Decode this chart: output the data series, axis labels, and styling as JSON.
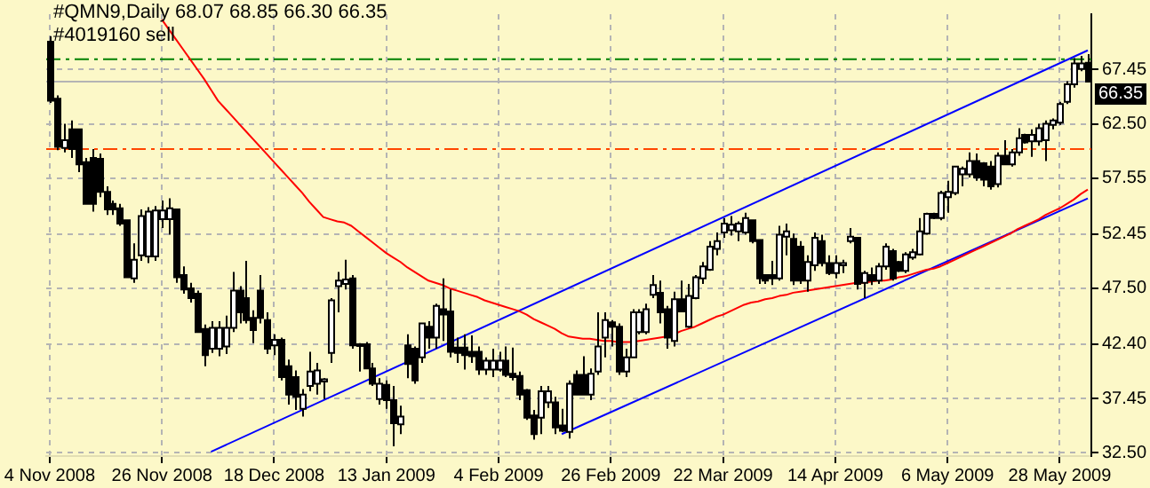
{
  "chart_data": {
    "type": "candlestick",
    "title": "#QMN9,Daily 68.07 68.85 66.30 66.35",
    "annotations": [
      "#4019160 sell"
    ],
    "categories": [
      "4 Nov 2008",
      null,
      null,
      null,
      null,
      null,
      null,
      null,
      null,
      null,
      null,
      null,
      null,
      null,
      null,
      null,
      "26 Nov 2008",
      null,
      null,
      null,
      null,
      null,
      null,
      null,
      null,
      null,
      null,
      null,
      null,
      null,
      null,
      null,
      "18 Dec 2008",
      null,
      null,
      null,
      null,
      null,
      null,
      null,
      null,
      null,
      null,
      null,
      null,
      null,
      null,
      null,
      "13 Jan 2009",
      null,
      null,
      null,
      null,
      null,
      null,
      null,
      null,
      null,
      null,
      null,
      null,
      null,
      null,
      null,
      "4 Feb 2009",
      null,
      null,
      null,
      null,
      null,
      null,
      null,
      null,
      null,
      null,
      null,
      null,
      null,
      null,
      null,
      "26 Feb 2009",
      null,
      null,
      null,
      null,
      null,
      null,
      null,
      null,
      null,
      null,
      null,
      null,
      null,
      null,
      null,
      "22 Mar 2009",
      null,
      null,
      null,
      null,
      null,
      null,
      null,
      null,
      null,
      null,
      null,
      null,
      null,
      null,
      null,
      "14 Apr 2009",
      null,
      null,
      null,
      null,
      null,
      null,
      null,
      null,
      null,
      null,
      null,
      null,
      null,
      null,
      null,
      "6 May 2009",
      null,
      null,
      null,
      null,
      null,
      null,
      null,
      null,
      null,
      null,
      null,
      null,
      null,
      null,
      null,
      "28 May 2009",
      null,
      null,
      null,
      null
    ],
    "ohlc": [
      [
        70.0,
        70.5,
        64.4,
        64.6
      ],
      [
        64.8,
        65.1,
        60.1,
        60.4
      ],
      [
        60.3,
        62.5,
        59.9,
        61.0
      ],
      [
        62.0,
        62.8,
        59.4,
        60.2
      ],
      [
        62.0,
        62.0,
        58.1,
        58.8
      ],
      [
        59.0,
        59.4,
        55.2,
        55.2
      ],
      [
        59.4,
        60.2,
        54.5,
        55.2
      ],
      [
        59.3,
        59.8,
        55.8,
        56.3
      ],
      [
        56.3,
        56.8,
        54.2,
        54.7
      ],
      [
        55.2,
        55.5,
        54.2,
        54.7
      ],
      [
        54.8,
        55.2,
        53.2,
        53.4
      ],
      [
        53.7,
        53.7,
        48.5,
        48.5
      ],
      [
        48.4,
        51.6,
        48.0,
        50.1
      ],
      [
        50.5,
        54.7,
        50.0,
        54.1
      ],
      [
        50.4,
        54.9,
        49.8,
        54.5
      ],
      [
        50.4,
        55.0,
        50.0,
        54.6
      ],
      [
        53.8,
        55.5,
        53.0,
        54.6
      ],
      [
        53.8,
        55.7,
        52.4,
        54.8
      ],
      [
        54.7,
        54.7,
        48.0,
        48.5
      ],
      [
        48.7,
        49.5,
        47.0,
        47.4
      ],
      [
        47.5,
        48.0,
        46.2,
        46.6
      ],
      [
        47.0,
        47.3,
        43.5,
        43.5
      ],
      [
        43.8,
        44.2,
        40.4,
        41.4
      ],
      [
        42.0,
        44.5,
        41.6,
        43.9
      ],
      [
        42.0,
        44.5,
        41.3,
        43.9
      ],
      [
        42.2,
        45.0,
        41.5,
        43.9
      ],
      [
        43.9,
        49.0,
        43.5,
        47.3
      ],
      [
        47.3,
        47.7,
        44.3,
        45.3
      ],
      [
        46.6,
        50.0,
        44.3,
        44.6
      ],
      [
        44.8,
        45.5,
        42.5,
        43.7
      ],
      [
        47.3,
        48.7,
        44.3,
        44.8
      ],
      [
        44.6,
        45.3,
        41.5,
        42.0
      ],
      [
        42.3,
        43.3,
        41.4,
        42.8
      ],
      [
        42.8,
        43.0,
        39.1,
        39.4
      ],
      [
        40.4,
        41.0,
        36.9,
        37.8
      ],
      [
        39.4,
        40.0,
        36.4,
        37.6
      ],
      [
        36.5,
        38.3,
        35.8,
        37.8
      ],
      [
        38.6,
        41.7,
        38.1,
        39.9
      ],
      [
        38.8,
        40.7,
        37.8,
        40.0
      ],
      [
        39.0,
        39.3,
        37.4,
        39.2
      ],
      [
        41.6,
        46.6,
        40.7,
        46.4
      ],
      [
        47.7,
        49.0,
        45.3,
        48.2
      ],
      [
        47.9,
        50.1,
        47.4,
        48.3
      ],
      [
        48.4,
        48.7,
        42.0,
        42.3
      ],
      [
        42.4,
        42.5,
        39.9,
        42.3
      ],
      [
        42.4,
        42.6,
        40.2,
        40.2
      ],
      [
        40.2,
        40.7,
        38.6,
        38.8
      ],
      [
        37.4,
        39.3,
        36.9,
        38.8
      ],
      [
        38.7,
        39.1,
        36.5,
        37.3
      ],
      [
        37.3,
        38.6,
        33.1,
        35.2
      ],
      [
        35.1,
        36.8,
        34.2,
        35.8
      ],
      [
        42.3,
        43.3,
        39.3,
        40.6
      ],
      [
        42.0,
        42.2,
        38.8,
        39.1
      ],
      [
        41.2,
        44.3,
        40.7,
        44.3
      ],
      [
        44.0,
        44.5,
        42.0,
        43.0
      ],
      [
        43.0,
        46.1,
        42.0,
        45.9
      ],
      [
        45.6,
        48.4,
        42.7,
        45.1
      ],
      [
        45.4,
        47.4,
        41.2,
        41.7
      ],
      [
        42.1,
        43.0,
        40.7,
        41.6
      ],
      [
        42.1,
        43.3,
        40.1,
        41.4
      ],
      [
        41.7,
        43.2,
        40.7,
        41.3
      ],
      [
        41.7,
        42.2,
        39.6,
        40.1
      ],
      [
        40.1,
        41.2,
        39.6,
        40.9
      ],
      [
        40.1,
        42.0,
        39.4,
        40.9
      ],
      [
        40.1,
        41.7,
        39.9,
        40.9
      ],
      [
        40.9,
        42.2,
        39.4,
        39.6
      ],
      [
        39.7,
        42.1,
        39.1,
        39.4
      ],
      [
        39.5,
        39.9,
        37.3,
        37.8
      ],
      [
        38.2,
        38.3,
        35.5,
        35.7
      ],
      [
        35.9,
        36.4,
        33.7,
        34.2
      ],
      [
        35.7,
        38.6,
        34.2,
        38.1
      ],
      [
        37.1,
        38.6,
        36.6,
        38.1
      ],
      [
        37.1,
        37.6,
        34.2,
        34.8
      ],
      [
        35.0,
        36.5,
        34.4,
        34.5
      ],
      [
        34.4,
        39.1,
        33.8,
        38.8
      ],
      [
        39.6,
        40.0,
        37.8,
        37.8
      ],
      [
        39.6,
        41.3,
        37.8,
        37.8
      ],
      [
        37.8,
        40.2,
        37.3,
        39.7
      ],
      [
        39.9,
        45.3,
        39.6,
        42.2
      ],
      [
        43.0,
        45.3,
        41.2,
        44.6
      ],
      [
        44.4,
        44.6,
        42.2,
        44.0
      ],
      [
        44.0,
        44.3,
        39.6,
        39.9
      ],
      [
        39.9,
        42.0,
        39.4,
        41.2
      ],
      [
        41.2,
        45.6,
        41.2,
        45.3
      ],
      [
        43.5,
        45.6,
        43.3,
        45.3
      ],
      [
        43.5,
        46.1,
        43.3,
        45.6
      ],
      [
        46.9,
        48.7,
        46.6,
        47.8
      ],
      [
        47.1,
        48.2,
        44.3,
        45.3
      ],
      [
        45.6,
        45.9,
        42.0,
        43.0
      ],
      [
        42.7,
        47.2,
        42.2,
        46.5
      ],
      [
        46.5,
        48.2,
        45.3,
        45.4
      ],
      [
        44.0,
        47.9,
        43.9,
        46.8
      ],
      [
        46.6,
        48.7,
        46.5,
        48.5
      ],
      [
        48.4,
        49.9,
        47.9,
        49.5
      ],
      [
        49.2,
        51.8,
        49.1,
        51.3
      ],
      [
        51.1,
        52.6,
        50.5,
        51.8
      ],
      [
        52.6,
        53.9,
        52.1,
        53.4
      ],
      [
        52.8,
        54.1,
        52.3,
        53.3
      ],
      [
        52.7,
        53.6,
        51.8,
        53.4
      ],
      [
        52.6,
        54.4,
        52.4,
        53.9
      ],
      [
        53.7,
        53.7,
        51.6,
        51.8
      ],
      [
        51.9,
        51.9,
        47.9,
        48.4
      ],
      [
        48.7,
        48.7,
        47.9,
        48.2
      ],
      [
        48.7,
        50.0,
        47.8,
        48.4
      ],
      [
        48.4,
        53.2,
        48.2,
        52.4
      ],
      [
        52.2,
        53.4,
        50.5,
        52.7
      ],
      [
        52.0,
        52.5,
        47.8,
        48.2
      ],
      [
        51.3,
        51.8,
        47.9,
        48.2
      ],
      [
        48.2,
        50.5,
        47.2,
        49.9
      ],
      [
        49.6,
        52.6,
        49.1,
        52.1
      ],
      [
        51.8,
        52.4,
        49.5,
        49.8
      ],
      [
        49.8,
        50.5,
        48.7,
        48.9
      ],
      [
        48.9,
        50.5,
        48.4,
        49.8
      ],
      [
        49.6,
        50.1,
        48.9,
        49.8
      ],
      [
        51.8,
        53.0,
        51.6,
        52.2
      ],
      [
        52.1,
        52.1,
        47.4,
        47.9
      ],
      [
        48.0,
        49.1,
        46.6,
        48.9
      ],
      [
        48.7,
        49.4,
        47.8,
        48.2
      ],
      [
        48.2,
        49.8,
        47.9,
        49.5
      ],
      [
        49.5,
        51.6,
        49.2,
        51.3
      ],
      [
        50.9,
        51.1,
        48.2,
        48.4
      ],
      [
        49.9,
        50.0,
        49.0,
        49.1
      ],
      [
        49.1,
        50.8,
        48.9,
        50.6
      ],
      [
        50.3,
        51.1,
        50.1,
        50.8
      ],
      [
        50.6,
        53.9,
        50.5,
        52.7
      ],
      [
        52.5,
        54.4,
        52.4,
        54.3
      ],
      [
        54.3,
        54.4,
        53.8,
        53.9
      ],
      [
        53.9,
        56.4,
        53.7,
        56.2
      ],
      [
        55.8,
        57.3,
        54.4,
        56.3
      ],
      [
        56.2,
        58.6,
        56.0,
        58.6
      ],
      [
        57.9,
        58.6,
        56.8,
        58.4
      ],
      [
        57.9,
        59.9,
        57.6,
        59.1
      ],
      [
        59.1,
        59.8,
        57.3,
        57.6
      ],
      [
        58.9,
        59.0,
        56.8,
        57.4
      ],
      [
        58.6,
        59.1,
        56.5,
        56.8
      ],
      [
        57.0,
        59.9,
        56.7,
        59.6
      ],
      [
        59.6,
        61.0,
        58.8,
        58.8
      ],
      [
        58.8,
        60.2,
        58.6,
        59.9
      ],
      [
        59.9,
        62.1,
        59.6,
        61.2
      ],
      [
        61.5,
        61.6,
        60.7,
        60.8
      ],
      [
        60.9,
        62.0,
        59.5,
        61.5
      ],
      [
        60.9,
        62.5,
        60.5,
        62.1
      ],
      [
        61.0,
        62.8,
        59.1,
        62.5
      ],
      [
        62.4,
        63.0,
        62.0,
        62.8
      ],
      [
        62.6,
        64.5,
        62.4,
        64.3
      ],
      [
        64.5,
        66.4,
        64.3,
        66.1
      ],
      [
        66.1,
        68.5,
        65.8,
        68.0
      ],
      [
        67.5,
        68.7,
        67.3,
        68.0
      ],
      [
        68.07,
        68.85,
        66.3,
        66.35
      ]
    ],
    "series": [
      {
        "type": "line",
        "color": "#ff0000",
        "values": [
          null,
          null,
          null,
          null,
          null,
          null,
          null,
          null,
          null,
          null,
          null,
          null,
          null,
          null,
          null,
          null,
          72.0,
          71.1,
          70.2,
          69.3,
          68.4,
          67.5,
          66.6,
          65.6,
          64.6,
          63.9,
          63.2,
          62.5,
          61.8,
          61.1,
          60.4,
          59.7,
          59.0,
          58.3,
          57.6,
          56.9,
          56.2,
          55.4,
          54.7,
          54.0,
          53.8,
          53.6,
          53.5,
          53.2,
          52.7,
          52.2,
          51.7,
          51.2,
          50.7,
          50.3,
          49.9,
          49.4,
          49.0,
          48.6,
          48.2,
          48.0,
          47.8,
          47.5,
          47.3,
          47.1,
          46.9,
          46.7,
          46.4,
          46.2,
          46.0,
          45.8,
          45.6,
          45.4,
          45.1,
          44.7,
          44.4,
          44.1,
          43.8,
          43.4,
          43.1,
          43.0,
          42.9,
          42.9,
          42.8,
          42.7,
          42.7,
          42.6,
          42.6,
          42.6,
          42.7,
          42.8,
          42.9,
          43.0,
          43.1,
          43.3,
          43.6,
          43.8,
          44.0,
          44.3,
          44.6,
          44.9,
          45.1,
          45.4,
          45.7,
          46.0,
          46.2,
          46.3,
          46.5,
          46.6,
          46.8,
          46.9,
          47.1,
          47.2,
          47.3,
          47.4,
          47.5,
          47.6,
          47.7,
          47.8,
          47.9,
          48.0,
          48.0,
          48.1,
          48.2,
          48.2,
          48.3,
          48.5,
          48.6,
          48.8,
          49.0,
          49.2,
          49.3,
          49.5,
          49.8,
          50.1,
          50.4,
          50.7,
          51.0,
          51.3,
          51.6,
          51.9,
          52.2,
          52.5,
          52.9,
          53.2,
          53.5,
          53.8,
          54.2,
          54.5,
          54.8,
          55.2,
          55.6,
          56.1,
          56.5
        ]
      },
      {
        "type": "line",
        "color": "#0000ff",
        "values": [
          null,
          null,
          null,
          null,
          null,
          null,
          null,
          null,
          null,
          null,
          null,
          null,
          null,
          null,
          null,
          null,
          null,
          null,
          null,
          null,
          null,
          null,
          null,
          32.6,
          null,
          null,
          null,
          null,
          null,
          null,
          null,
          null,
          null,
          null,
          null,
          null,
          null,
          null,
          null,
          null,
          null,
          null,
          null,
          null,
          null,
          null,
          null,
          null,
          null,
          null,
          null,
          null,
          null,
          null,
          null,
          null,
          null,
          null,
          null,
          null,
          null,
          null,
          null,
          null,
          null,
          null,
          null,
          null,
          null,
          null,
          null,
          null,
          null,
          null,
          null,
          null,
          null,
          null,
          null,
          null,
          null,
          null,
          null,
          null,
          null,
          null,
          null,
          null,
          null,
          null,
          null,
          null,
          null,
          null,
          null,
          null,
          null,
          null,
          null,
          null,
          null,
          null,
          null,
          null,
          null,
          null,
          null,
          null,
          null,
          null,
          null,
          null,
          null,
          null,
          null,
          null,
          null,
          null,
          null,
          null,
          null,
          null,
          null,
          null,
          null,
          null,
          null,
          null,
          null,
          null,
          null,
          null,
          null,
          null,
          null,
          null,
          null,
          null,
          null,
          null,
          null,
          null,
          null,
          null,
          null,
          null,
          null,
          null,
          69.2
        ]
      },
      {
        "type": "line",
        "color": "#0000ff",
        "values": [
          null,
          null,
          null,
          null,
          null,
          null,
          null,
          null,
          null,
          null,
          null,
          null,
          null,
          null,
          null,
          null,
          null,
          null,
          null,
          null,
          null,
          null,
          null,
          null,
          null,
          null,
          null,
          null,
          null,
          null,
          null,
          null,
          null,
          null,
          null,
          null,
          null,
          null,
          null,
          null,
          null,
          null,
          null,
          null,
          null,
          null,
          null,
          null,
          null,
          null,
          null,
          null,
          null,
          null,
          null,
          null,
          null,
          null,
          null,
          null,
          null,
          null,
          null,
          null,
          null,
          null,
          null,
          null,
          null,
          null,
          null,
          null,
          null,
          34.2,
          null,
          null,
          null,
          null,
          null,
          null,
          null,
          null,
          null,
          null,
          null,
          null,
          null,
          null,
          null,
          null,
          null,
          null,
          null,
          null,
          null,
          null,
          null,
          null,
          null,
          null,
          null,
          null,
          null,
          null,
          null,
          null,
          null,
          null,
          null,
          null,
          null,
          null,
          null,
          null,
          null,
          null,
          null,
          null,
          null,
          null,
          null,
          null,
          null,
          null,
          null,
          null,
          null,
          null,
          null,
          null,
          null,
          null,
          null,
          null,
          null,
          null,
          null,
          null,
          null,
          null,
          null,
          null,
          null,
          null,
          null,
          null,
          null,
          null,
          55.7
        ]
      }
    ],
    "ref_lines": [
      {
        "axis": "y",
        "value": 68.4,
        "color": "#008000",
        "line_style": "dashed"
      },
      {
        "axis": "y",
        "value": 60.2,
        "color": "#ff4500",
        "line_style": "dashed"
      },
      {
        "axis": "y",
        "value": 66.35,
        "label": "66.35",
        "color": "#b4b4b4",
        "line_style": "solid"
      }
    ],
    "ylim": [
      32.2,
      72.5
    ],
    "yticks": [
      {
        "value": 32.5,
        "label": "32.50"
      },
      37.45,
      {
        "value": 42.4,
        "label": "42.40"
      },
      {
        "value": 47.5,
        "label": "47.50"
      },
      52.45,
      57.55,
      {
        "value": 62.5,
        "label": "62.50"
      },
      67.45
    ],
    "grid": true
  }
}
